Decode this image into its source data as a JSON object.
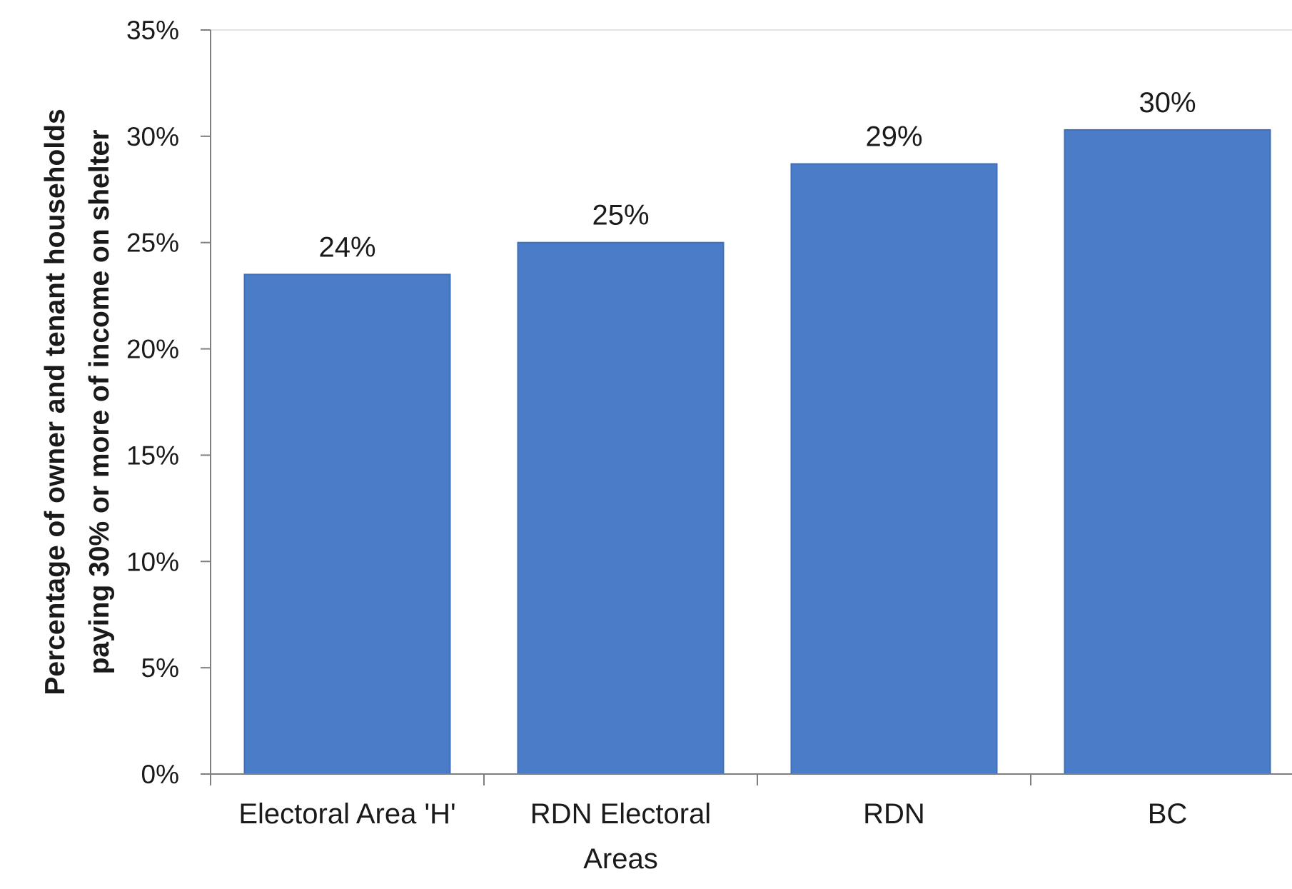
{
  "chart_data": {
    "type": "bar",
    "categories": [
      "Electoral Area 'H'",
      "RDN Electoral\nAreas",
      "RDN",
      "BC"
    ],
    "values": [
      23.5,
      25.0,
      28.7,
      30.3
    ],
    "data_labels": [
      "24%",
      "25%",
      "29%",
      "30%"
    ],
    "ylabel_lines": [
      "Percentage of owner and tenant households",
      "paying 30% or more of income on shelter"
    ],
    "yticks": [
      "0%",
      "5%",
      "10%",
      "15%",
      "20%",
      "25%",
      "30%",
      "35%"
    ],
    "ylim": [
      0,
      35
    ],
    "bar_color": "#4a7cc7",
    "grid": false,
    "legend": "none"
  }
}
